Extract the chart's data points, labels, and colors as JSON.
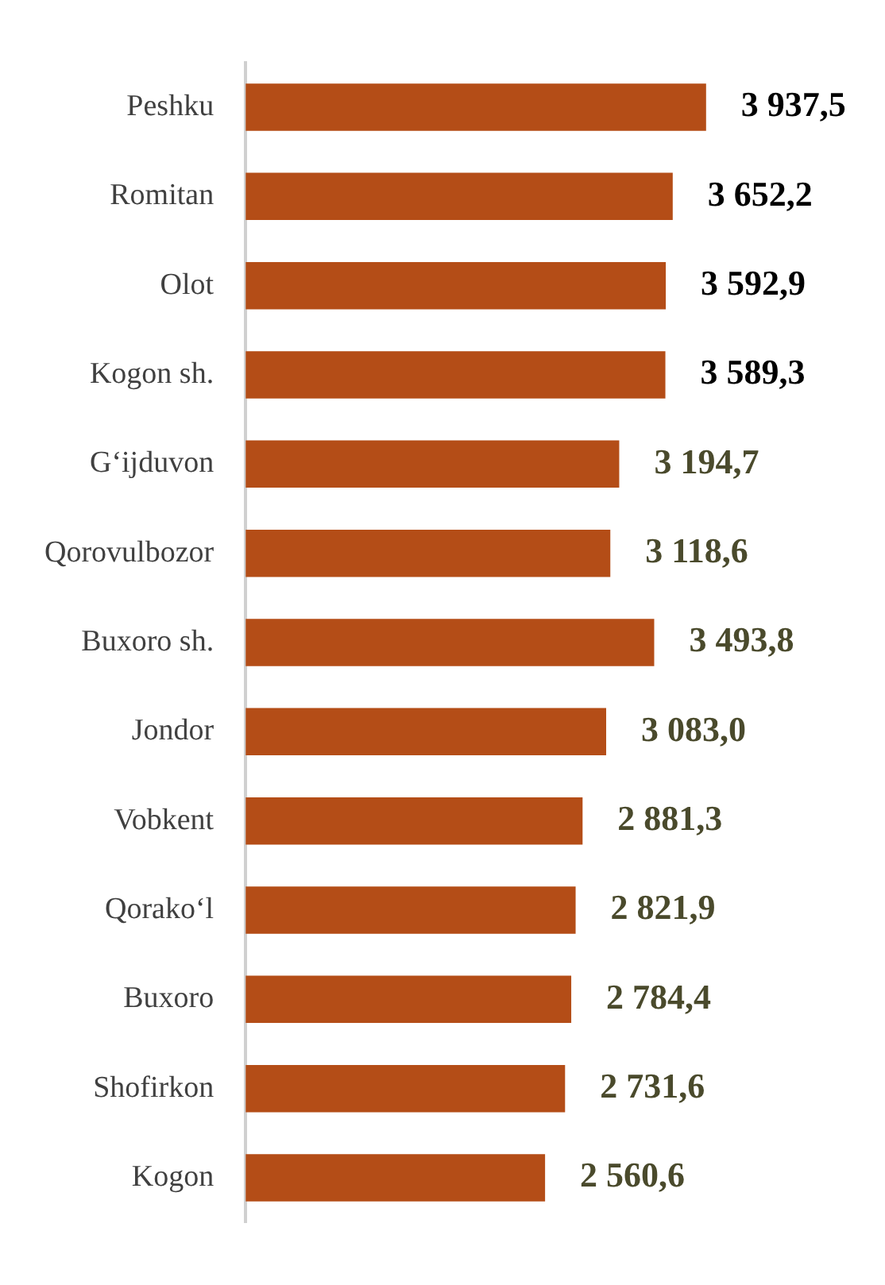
{
  "chart_data": {
    "type": "bar",
    "orientation": "horizontal",
    "categories": [
      "Peshku",
      "Romitan",
      "Olot",
      "Kogon sh.",
      "G‘ijduvon",
      "Qorovulbozor",
      "Buxoro sh.",
      "Jondor",
      "Vobkent",
      "Qorako‘l",
      "Buxoro",
      "Shofirkon",
      "Kogon"
    ],
    "values": [
      3937.5,
      3652.2,
      3592.9,
      3589.3,
      3194.7,
      3118.6,
      3493.8,
      3083.0,
      2881.3,
      2821.9,
      2784.4,
      2731.6,
      2560.6
    ],
    "value_labels": [
      "3 937,5",
      "3 652,2",
      "3 592,9",
      "3 589,3",
      "3 194,7",
      "3 118,6",
      "3 493,8",
      "3 083,0",
      "2 881,3",
      "2 821,9",
      "2 784,4",
      "2 731,6",
      "2 560,6"
    ],
    "color": "#b44d17",
    "grid": false,
    "legend": false
  }
}
